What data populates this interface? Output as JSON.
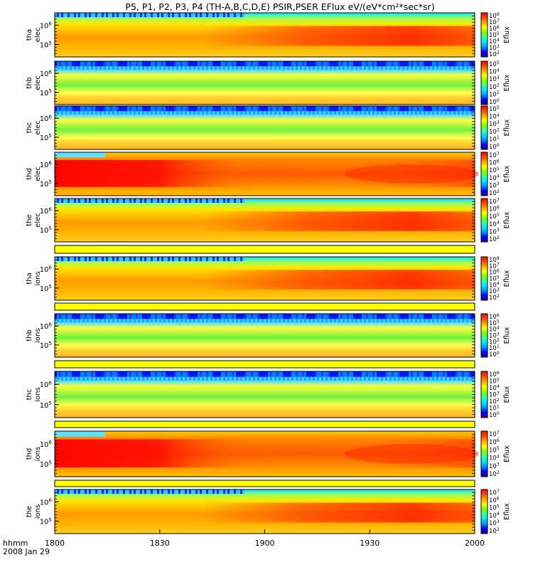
{
  "header": {
    "title": "P5, P1, P2, P3, P4 (TH-A,B,C,D,E) PSIR,PSER EFlux eV/(eV*cm²*sec*sr)"
  },
  "footer": {
    "hhmm_label": "hhmm",
    "date_label": "2008 Jan 29"
  },
  "colorbar": {
    "label": "Eflux",
    "colors": [
      "#3a007a",
      "#0000ff",
      "#0096ff",
      "#00e6ff",
      "#34ffa0",
      "#7eff00",
      "#ffff00",
      "#ffaa00",
      "#ff4a00",
      "#ff0000"
    ]
  },
  "chart_data": {
    "type": "heatmap",
    "x_tick_labels": [
      "1800",
      "1830",
      "1900",
      "1930",
      "2000"
    ],
    "panels": [
      {
        "name": "tha elec",
        "ylabel_top": "tha",
        "ylabel_bottom": "elec",
        "y_ticks": [
          "10^6",
          "10^5"
        ],
        "cbar_ticks": [
          "10^8",
          "10^7",
          "10^6",
          "10^5",
          "10^4",
          "10^3",
          "10^2"
        ],
        "style": "elec_a"
      },
      {
        "name": "thb elec",
        "ylabel_top": "thb",
        "ylabel_bottom": "elec",
        "y_ticks": [
          "10^6",
          "10^5"
        ],
        "cbar_ticks": [
          "10^5",
          "10^4",
          "10^3",
          "10^2",
          "10^1",
          "10^0"
        ],
        "style": "quiet"
      },
      {
        "name": "thc elec",
        "ylabel_top": "thc",
        "ylabel_bottom": "elec",
        "y_ticks": [
          "10^6",
          "10^5"
        ],
        "cbar_ticks": [
          "10^5",
          "10^4",
          "10^3",
          "10^2",
          "10^1",
          "10^0"
        ],
        "style": "quiet"
      },
      {
        "name": "thd elec",
        "ylabel_top": "thd",
        "ylabel_bottom": "elec",
        "y_ticks": [
          "10^6",
          "10^5"
        ],
        "cbar_ticks": [
          "10^7",
          "10^6",
          "10^5",
          "10^4",
          "10^3",
          "10^2"
        ],
        "style": "active"
      },
      {
        "name": "the elec",
        "ylabel_top": "the",
        "ylabel_bottom": "elec",
        "y_ticks": [
          "10^6",
          "10^5"
        ],
        "cbar_ticks": [
          "10^7",
          "10^6",
          "10^5",
          "10^4",
          "10^3",
          "10^2"
        ],
        "style": "elec_a"
      },
      {
        "name": "tha ions",
        "ylabel_top": "tha",
        "ylabel_bottom": "ions",
        "y_ticks": [
          "10^6",
          "10^5"
        ],
        "cbar_ticks": [
          "10^8",
          "10^7",
          "10^6",
          "10^5",
          "10^4",
          "10^3",
          "10^2"
        ],
        "style": "elec_a"
      },
      {
        "name": "thb ions",
        "ylabel_top": "thb",
        "ylabel_bottom": "ions",
        "y_ticks": [
          "10^6",
          "10^5"
        ],
        "cbar_ticks": [
          "10^6",
          "10^5",
          "10^4",
          "10^3",
          "10^2",
          "10^1",
          "10^0"
        ],
        "style": "quiet"
      },
      {
        "name": "thc ions",
        "ylabel_top": "thc",
        "ylabel_bottom": "ions",
        "y_ticks": [
          "10^6",
          "10^5"
        ],
        "cbar_ticks": [
          "10^6",
          "10^5",
          "10^4",
          "10^3",
          "10^2",
          "10^1",
          "10^0"
        ],
        "style": "quiet"
      },
      {
        "name": "thd ions",
        "ylabel_top": "thd",
        "ylabel_bottom": "ions",
        "y_ticks": [
          "10^6",
          "10^5"
        ],
        "cbar_ticks": [
          "10^7",
          "10^6",
          "10^5",
          "10^4",
          "10^3",
          "10^2"
        ],
        "style": "active"
      },
      {
        "name": "the ions",
        "ylabel_top": "the",
        "ylabel_bottom": "ions",
        "y_ticks": [
          "10^6",
          "10^5"
        ],
        "cbar_ticks": [
          "10^7",
          "10^6",
          "10^5",
          "10^4",
          "10^3",
          "10^2"
        ],
        "style": "elec_a"
      }
    ]
  }
}
